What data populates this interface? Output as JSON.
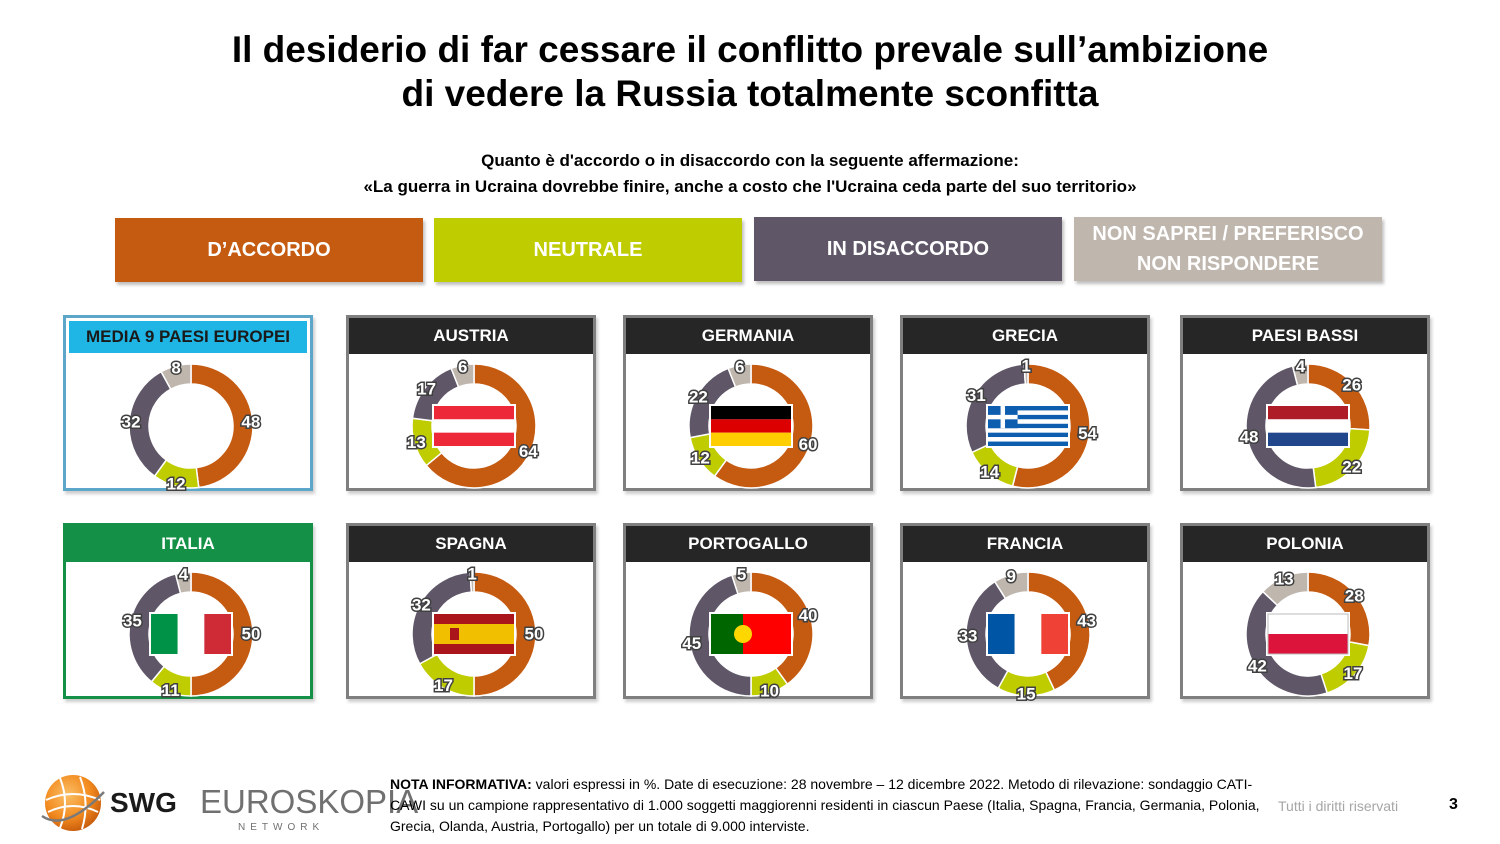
{
  "title_line1": "Il desiderio di far cessare il conflitto prevale sull’ambizione",
  "title_line2": "di vedere la Russia totalmente sconfitta",
  "question": "Quanto è d'accordo o in disaccordo con la seguente affermazione:",
  "statement": "«La guerra in Ucraina dovrebbe finire, anche a costo che l'Ucraina ceda parte del suo territorio»",
  "legend": [
    {
      "label": "D’ACCORDO",
      "color": "#C55A11"
    },
    {
      "label": "NEUTRALE",
      "color": "#BFCC00"
    },
    {
      "label": "IN DISACCORDO",
      "color": "#5F5768"
    },
    {
      "label_line1": "NON SAPREI / PREFERISCO",
      "label_line2": "NON RISPONDERE",
      "color": "#BFB6AE"
    }
  ],
  "colors": {
    "accordo": "#C55A11",
    "neutrale": "#BFCC00",
    "disaccordo": "#5F5768",
    "non_so": "#BFB6AE",
    "panel_head_dark": "#262626",
    "media_head": "#1FB6E6",
    "italia_head": "#149146"
  },
  "chart_data": {
    "type": "pie",
    "categories": [
      "D’ACCORDO",
      "NEUTRALE",
      "IN DISACCORDO",
      "NON SAPREI / PREFERISCO NON RISPONDERE"
    ],
    "unit": "%",
    "charts": [
      {
        "name": "MEDIA 9 PAESI EUROPEI",
        "values": [
          48,
          12,
          32,
          8
        ],
        "flag": "none"
      },
      {
        "name": "AUSTRIA",
        "values": [
          64,
          13,
          17,
          6
        ],
        "flag": "austria-flag"
      },
      {
        "name": "GERMANIA",
        "values": [
          60,
          12,
          22,
          6
        ],
        "flag": "germany-flag"
      },
      {
        "name": "GRECIA",
        "values": [
          54,
          14,
          31,
          1
        ],
        "flag": "greece-flag"
      },
      {
        "name": "PAESI BASSI",
        "values": [
          26,
          22,
          48,
          4
        ],
        "flag": "netherlands-flag"
      },
      {
        "name": "ITALIA",
        "values": [
          50,
          11,
          35,
          4
        ],
        "flag": "italy-flag"
      },
      {
        "name": "SPAGNA",
        "values": [
          50,
          17,
          32,
          1
        ],
        "flag": "spain-flag"
      },
      {
        "name": "PORTOGALLO",
        "values": [
          40,
          10,
          45,
          5
        ],
        "flag": "portugal-flag"
      },
      {
        "name": "FRANCIA",
        "values": [
          43,
          15,
          33,
          9
        ],
        "flag": "france-flag"
      },
      {
        "name": "POLONIA",
        "values": [
          28,
          17,
          42,
          13
        ],
        "flag": "poland-flag"
      }
    ]
  },
  "logo": {
    "swg": "SWG",
    "euroskopia": "EUROSKOPIA",
    "network": "NETWORK"
  },
  "note_label": "NOTA INFORMATIVA:",
  "note_text": " valori espressi in %. Date di esecuzione: 28 novembre – 12 dicembre 2022. Metodo di rilevazione: sondaggio CATI-CAWI su un campione rappresentativo di 1.000 soggetti maggiorenni residenti in ciascun Paese (Italia, Spagna, Francia, Germania, Polonia, Grecia, Olanda, Austria, Portogallo) per un totale di 9.000 interviste.",
  "rights": "Tutti i diritti riservati",
  "page_number": "3"
}
